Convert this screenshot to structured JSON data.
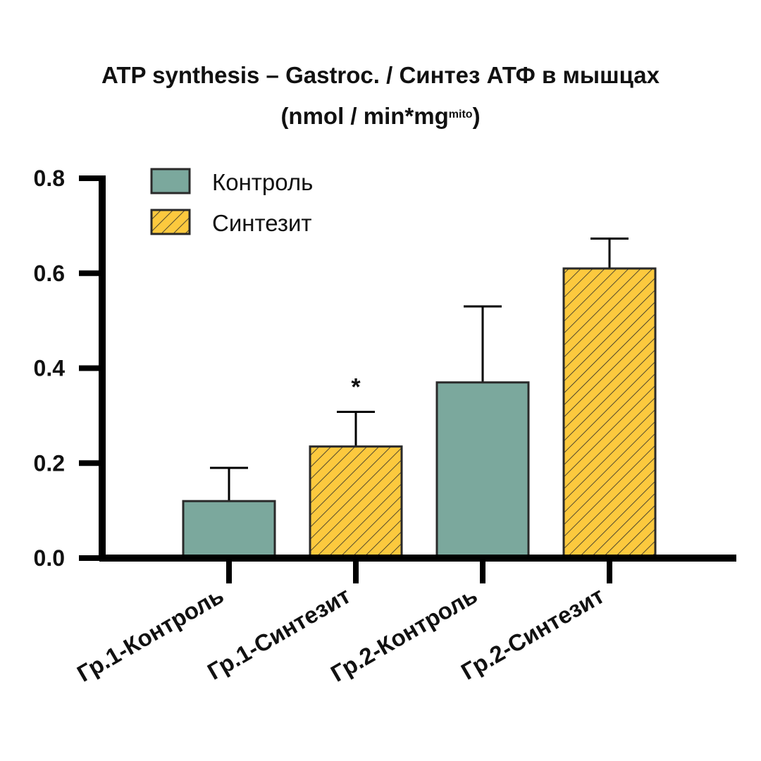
{
  "chart_data": {
    "type": "bar",
    "title_line1": "ATP synthesis – Gastroc. / Синтез АТФ в мышцах",
    "title_line2_prefix": "(nmol / min*mg",
    "title_line2_sup": "mito",
    "title_line2_suffix": ")",
    "xlabel": "",
    "ylabel": "",
    "ylim": [
      0,
      0.8
    ],
    "yticks": [
      "0.0",
      "0.2",
      "0.4",
      "0.6",
      "0.8"
    ],
    "grid": false,
    "legend_position": "top-left",
    "legend": [
      {
        "label": "Контроль",
        "group": "control"
      },
      {
        "label": "Синтезит",
        "group": "synthesit"
      }
    ],
    "categories": [
      "Гр.1-Контроль",
      "Гр.1-Синтезит",
      "Гр.2-Контроль",
      "Гр.2-Синтезит"
    ],
    "values": [
      0.12,
      0.235,
      0.37,
      0.61
    ],
    "error_upper": [
      0.19,
      0.308,
      0.53,
      0.673
    ],
    "groups": [
      "control",
      "synthesit",
      "control",
      "synthesit"
    ],
    "annotations": [
      {
        "category": "Гр.1-Синтезит",
        "text": "*"
      }
    ],
    "colors": {
      "control": "#7ba89d",
      "synthesit": "#fcc93e",
      "hatch": "#2a2a2a",
      "outline": "#2a2a2a",
      "axis": "#000000"
    }
  }
}
